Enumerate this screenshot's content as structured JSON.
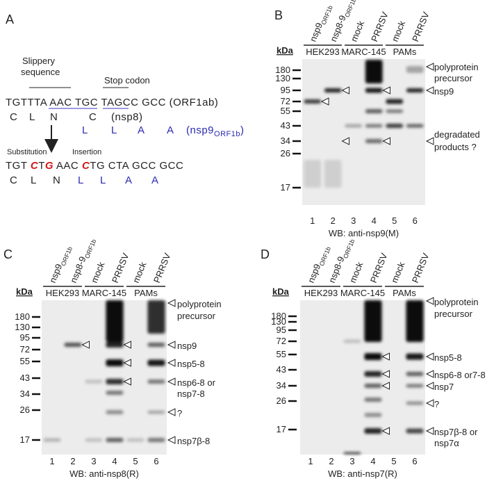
{
  "panel_a": {
    "label": "A",
    "slippery": [
      "Slippery",
      "sequence"
    ],
    "stop_codon": "Stop codon",
    "seq_orig": [
      "TGT",
      "TTA AAC",
      " TGC ",
      "TAG",
      "CC GCC (ORF1ab)"
    ],
    "aa_orig": [
      "C",
      "L",
      "N",
      "C",
      "(nsp8)"
    ],
    "aa_frame": [
      "L",
      "L",
      "A",
      "A",
      "(nsp9",
      "ORF1b",
      ")"
    ],
    "substitution": "Substitution",
    "insertion": "Insertion",
    "seq_mut": [
      "TGT ",
      "C",
      "T",
      "G",
      " AAC ",
      "C",
      "TG CTA GCC GCC"
    ],
    "aa_mut": [
      "C",
      "L",
      "N",
      "L",
      "L",
      "A",
      "A"
    ]
  },
  "panel_b": {
    "label": "B",
    "lanes": [
      {
        "name": "nsp9",
        "sub": "ORF1b"
      },
      {
        "name": "nsp8-9",
        "sub": "ORF1b"
      },
      {
        "name": "mock"
      },
      {
        "name": "PRRSV"
      },
      {
        "name": "mock"
      },
      {
        "name": "PRRSV"
      }
    ],
    "groups": [
      "HEK293",
      "MARC-145",
      "PAMs"
    ],
    "kda": "kDa",
    "markers": [
      "180",
      "130",
      "95",
      "72",
      "55",
      "43",
      "34",
      "26",
      "17"
    ],
    "lane_numbers": [
      "1",
      "2",
      "3",
      "4",
      "5",
      "6"
    ],
    "annotations": [
      "polyprotein",
      "precursor",
      "nsp9",
      "degradated",
      "products ?"
    ],
    "caption": "WB: anti-nsp9(M)"
  },
  "panel_c": {
    "label": "C",
    "lanes": [
      {
        "name": "nsp9",
        "sub": "ORF1b"
      },
      {
        "name": "nsp8-9",
        "sub": "ORF1b"
      },
      {
        "name": "mock"
      },
      {
        "name": "PRRSV"
      },
      {
        "name": "mock"
      },
      {
        "name": "PRRSV"
      }
    ],
    "groups": [
      "HEK293",
      "MARC-145",
      "PAMs"
    ],
    "kda": "kDa",
    "markers": [
      "180",
      "130",
      "95",
      "72",
      "55",
      "43",
      "34",
      "26",
      "17"
    ],
    "lane_numbers": [
      "1",
      "2",
      "3",
      "4",
      "5",
      "6"
    ],
    "annotations": [
      "polyprotein",
      "precursor",
      "nsp9",
      "nsp5-8",
      "nsp6-8 or",
      "nsp7-8",
      "?",
      "nsp7β-8"
    ],
    "caption": "WB: anti-nsp8(R)"
  },
  "panel_d": {
    "label": "D",
    "lanes": [
      {
        "name": "nsp9",
        "sub": "ORF1b"
      },
      {
        "name": "nsp8-9",
        "sub": "ORF1b"
      },
      {
        "name": "mock"
      },
      {
        "name": "PRRSV"
      },
      {
        "name": "mock"
      },
      {
        "name": "PRRSV"
      }
    ],
    "groups": [
      "HEK293",
      "MARC-145",
      "PAMs"
    ],
    "kda": "kDa",
    "markers": [
      "180",
      "130",
      "95",
      "72",
      "55",
      "43",
      "34",
      "26",
      "17"
    ],
    "lane_numbers": [
      "1",
      "2",
      "3",
      "4",
      "5",
      "6"
    ],
    "annotations": [
      "polyprotein",
      "precursor",
      "nsp5-8",
      "nsp6-8 or7-8",
      "nsp7",
      "?",
      "nsp7β-8 or",
      "nsp7α"
    ],
    "caption": "WB: anti-nsp7(R)"
  }
}
